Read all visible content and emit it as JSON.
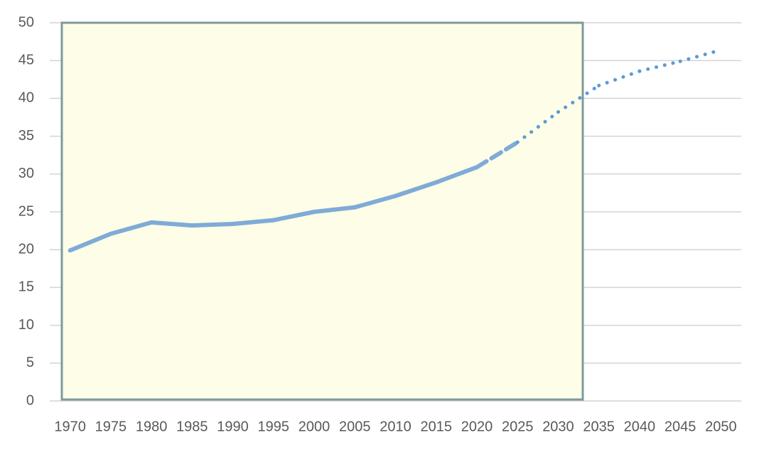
{
  "chart_data": {
    "type": "line",
    "categories": [
      "1970",
      "1975",
      "1980",
      "1985",
      "1990",
      "1995",
      "2000",
      "2005",
      "2010",
      "2015",
      "2020",
      "2025",
      "2030",
      "2035",
      "2040",
      "2045",
      "2050"
    ],
    "series": [
      {
        "color": "#7fabd6",
        "values": [
          19.9,
          22.1,
          23.6,
          23.2,
          23.4,
          23.9,
          25.0,
          25.6,
          27.1,
          28.9,
          30.9,
          34.2,
          38.2,
          41.7,
          43.6,
          44.9,
          46.4
        ],
        "segment_styles": [
          "solid",
          "solid",
          "solid",
          "solid",
          "solid",
          "solid",
          "solid",
          "solid",
          "solid",
          "solid",
          "dashed",
          "dotted",
          "dotted",
          "dotted",
          "dotted",
          "dotted"
        ]
      }
    ],
    "ylim": [
      0,
      50
    ],
    "yticks": [
      0,
      5,
      10,
      15,
      20,
      25,
      30,
      35,
      40,
      45,
      50
    ],
    "grid": true
  }
}
